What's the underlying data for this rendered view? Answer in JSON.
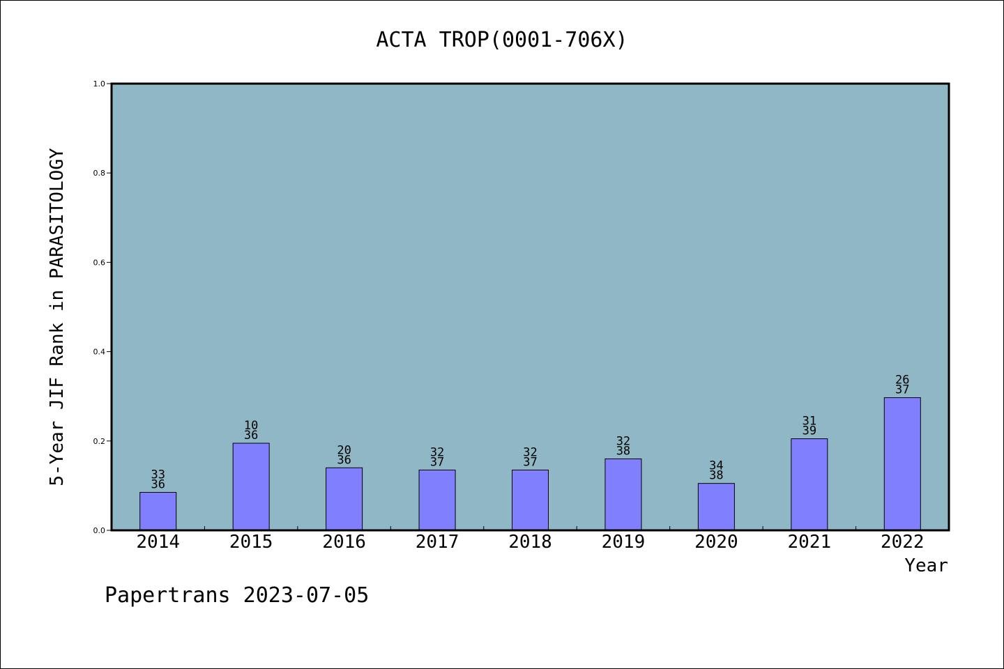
{
  "chart_data": {
    "type": "bar",
    "title": "ACTA TROP(0001-706X)",
    "xlabel": "Year",
    "ylabel": "5-Year JIF Rank in PARASITOLOGY",
    "ylim": [
      0,
      1.0
    ],
    "yticks": [
      "0.0",
      "0.2",
      "0.4",
      "0.6",
      "0.8",
      "1.0"
    ],
    "categories": [
      "2014",
      "2015",
      "2016",
      "2017",
      "2018",
      "2019",
      "2020",
      "2021",
      "2022"
    ],
    "values": [
      0.085,
      0.195,
      0.14,
      0.135,
      0.135,
      0.16,
      0.105,
      0.205,
      0.297
    ],
    "labels_top": [
      "33",
      "10",
      "20",
      "32",
      "32",
      "32",
      "34",
      "31",
      "26"
    ],
    "labels_bottom": [
      "36",
      "36",
      "36",
      "37",
      "37",
      "38",
      "38",
      "39",
      "37"
    ],
    "grid": false,
    "plot_background": "#8FB7C5",
    "bar_color": "#8080FF"
  },
  "footer": "Papertrans 2023-07-05"
}
